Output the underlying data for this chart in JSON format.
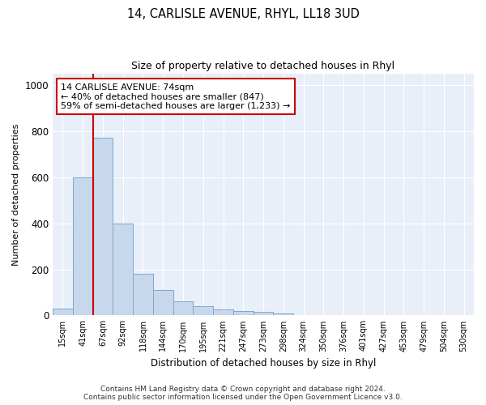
{
  "title": "14, CARLISLE AVENUE, RHYL, LL18 3UD",
  "subtitle": "Size of property relative to detached houses in Rhyl",
  "xlabel": "Distribution of detached houses by size in Rhyl",
  "ylabel": "Number of detached properties",
  "bar_color": "#c8d8ec",
  "bar_edge_color": "#7aa8cc",
  "background_color": "#e8eff8",
  "grid_color": "#ffffff",
  "categories": [
    "15sqm",
    "41sqm",
    "67sqm",
    "92sqm",
    "118sqm",
    "144sqm",
    "170sqm",
    "195sqm",
    "221sqm",
    "247sqm",
    "273sqm",
    "298sqm",
    "324sqm",
    "350sqm",
    "376sqm",
    "401sqm",
    "427sqm",
    "453sqm",
    "479sqm",
    "504sqm",
    "530sqm"
  ],
  "values": [
    30,
    600,
    770,
    400,
    180,
    110,
    60,
    40,
    25,
    20,
    15,
    8,
    3,
    2,
    2,
    1,
    1,
    1,
    1,
    1,
    1
  ],
  "ylim": [
    0,
    1050
  ],
  "yticks": [
    0,
    200,
    400,
    600,
    800,
    1000
  ],
  "red_line_bin_index": 2,
  "annotation_text_line1": "14 CARLISLE AVENUE: 74sqm",
  "annotation_text_line2": "← 40% of detached houses are smaller (847)",
  "annotation_text_line3": "59% of semi-detached houses are larger (1,233) →",
  "annotation_box_color": "#ffffff",
  "annotation_box_edge": "#cc0000",
  "red_line_color": "#cc0000",
  "footer_line1": "Contains HM Land Registry data © Crown copyright and database right 2024.",
  "footer_line2": "Contains public sector information licensed under the Open Government Licence v3.0."
}
